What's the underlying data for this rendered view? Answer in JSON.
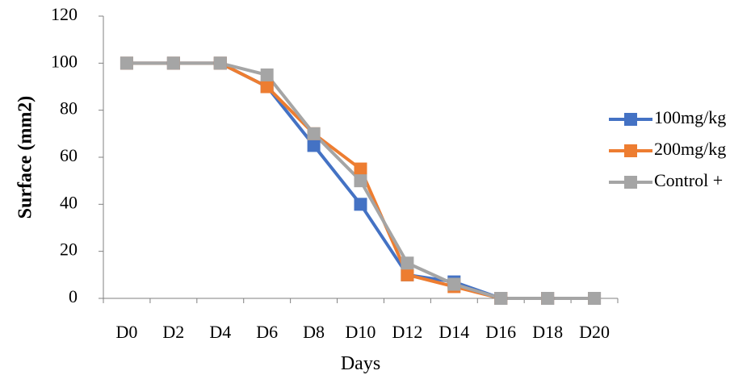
{
  "chart_data": {
    "type": "line",
    "categories": [
      "D0",
      "D2",
      "D4",
      "D6",
      "D8",
      "D10",
      "D12",
      "D14",
      "D16",
      "D18",
      "D20"
    ],
    "series": [
      {
        "name": "100mg/kg",
        "color": "#4472C4",
        "values": [
          100,
          100,
          100,
          90,
          65,
          40,
          10,
          7,
          0,
          0,
          0
        ]
      },
      {
        "name": "200mg/kg",
        "color": "#ED7D31",
        "values": [
          100,
          100,
          100,
          90,
          70,
          55,
          10,
          5,
          0,
          0,
          0
        ]
      },
      {
        "name": "Control +",
        "color": "#A5A5A5",
        "values": [
          100,
          100,
          100,
          95,
          70,
          50,
          15,
          6,
          0,
          0,
          0
        ]
      }
    ],
    "title": "",
    "xlabel": "Days",
    "ylabel": "Surface  (mm2)",
    "ylim": [
      0,
      120
    ],
    "yticks": [
      0,
      20,
      40,
      60,
      80,
      100,
      120
    ],
    "grid": false,
    "legend_position": "right"
  }
}
